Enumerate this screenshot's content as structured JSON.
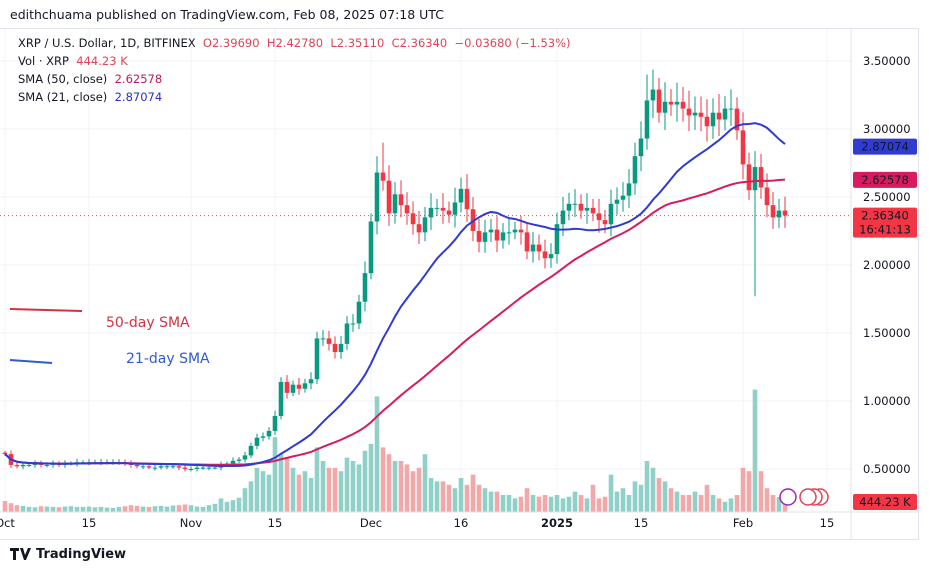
{
  "header": {
    "published": "edithchuama published on TradingView.com, Feb 08, 2025 07:18 UTC"
  },
  "legend": {
    "symbol": "XRP / U.S. Dollar, 1D, BITFINEX",
    "open": "O2.39690",
    "high": "H2.42780",
    "low": "L2.35110",
    "close": "C2.36340",
    "change": "−0.03680 (−1.53%)",
    "vol_label": "Vol · XRP",
    "vol_value": "444.23 K",
    "sma50_label": "SMA (50, close)",
    "sma50_value": "2.62578",
    "sma21_label": "SMA (21, close)",
    "sma21_value": "2.87074"
  },
  "annotations": {
    "sma50": "50-day SMA",
    "sma21": "21-day SMA"
  },
  "footer": {
    "brand": "TradingView"
  },
  "colors": {
    "up": "#089981",
    "down": "#f23645",
    "sma50": "#d81b60",
    "sma21": "#2f3bd1",
    "vol_up": "#8fd0c8",
    "vol_down": "#f2a7a9"
  },
  "chart_data": {
    "type": "candlestick",
    "start_date": "2024-10-01",
    "interval": "1D",
    "closes": [
      0.61,
      0.53,
      0.52,
      0.53,
      0.53,
      0.54,
      0.53,
      0.53,
      0.54,
      0.53,
      0.54,
      0.54,
      0.55,
      0.55,
      0.55,
      0.55,
      0.55,
      0.55,
      0.55,
      0.55,
      0.54,
      0.53,
      0.52,
      0.52,
      0.51,
      0.51,
      0.52,
      0.52,
      0.52,
      0.51,
      0.5,
      0.5,
      0.51,
      0.51,
      0.51,
      0.51,
      0.53,
      0.54,
      0.56,
      0.57,
      0.6,
      0.67,
      0.73,
      0.74,
      0.78,
      0.89,
      1.14,
      1.06,
      1.12,
      1.09,
      1.13,
      1.16,
      1.46,
      1.46,
      1.42,
      1.36,
      1.42,
      1.57,
      1.57,
      1.73,
      1.94,
      2.32,
      2.68,
      2.62,
      2.38,
      2.52,
      2.44,
      2.38,
      2.3,
      2.24,
      2.35,
      2.42,
      2.42,
      2.4,
      2.37,
      2.46,
      2.56,
      2.41,
      2.25,
      2.17,
      2.24,
      2.26,
      2.18,
      2.24,
      2.24,
      2.26,
      2.24,
      2.1,
      2.15,
      2.1,
      2.05,
      2.08,
      2.3,
      2.4,
      2.45,
      2.45,
      2.4,
      2.42,
      2.38,
      2.33,
      2.3,
      2.45,
      2.48,
      2.51,
      2.6,
      2.8,
      2.93,
      3.21,
      3.29,
      3.12,
      3.2,
      3.18,
      3.2,
      3.15,
      3.1,
      3.12,
      3.09,
      3.02,
      3.12,
      3.07,
      3.15,
      3.15,
      2.99,
      2.74,
      2.55,
      2.72,
      2.57,
      2.44,
      2.35,
      2.4,
      2.3634
    ],
    "first_open": 0.62,
    "wick_extremes": [
      {
        "date": "2024-12-03",
        "high": 2.9
      },
      {
        "date": "2025-01-16",
        "high": 3.4
      },
      {
        "date": "2025-02-03",
        "low": 1.77
      }
    ],
    "volume_unit": "K XRP",
    "volumes": [
      320,
      260,
      200,
      180,
      150,
      140,
      170,
      160,
      150,
      140,
      160,
      170,
      150,
      150,
      160,
      140,
      150,
      130,
      120,
      150,
      170,
      200,
      180,
      160,
      150,
      170,
      180,
      160,
      190,
      200,
      220,
      200,
      160,
      150,
      200,
      240,
      400,
      300,
      350,
      420,
      700,
      900,
      1300,
      1200,
      1100,
      2200,
      1700,
      1600,
      1300,
      1100,
      1200,
      1000,
      1900,
      1500,
      1300,
      1300,
      1200,
      1600,
      1500,
      1400,
      1800,
      2000,
      3400,
      1900,
      1700,
      1500,
      1500,
      1400,
      1200,
      1300,
      1700,
      1000,
      900,
      900,
      800,
      700,
      1000,
      800,
      1100,
      800,
      700,
      600,
      600,
      500,
      500,
      400,
      450,
      700,
      500,
      450,
      500,
      450,
      500,
      400,
      450,
      600,
      500,
      400,
      800,
      400,
      450,
      1100,
      600,
      700,
      500,
      900,
      800,
      1500,
      1300,
      1000,
      900,
      700,
      600,
      500,
      500,
      600,
      500,
      800,
      500,
      400,
      300,
      400,
      500,
      1300,
      1200,
      3600,
      1200,
      700,
      500,
      440,
      444.23
    ],
    "sma_periods": [
      50,
      21
    ],
    "y_ticks": [
      "3.50000",
      "3.00000",
      "2.50000",
      "2.00000",
      "1.50000",
      "1.00000",
      "0.50000"
    ],
    "y_tick_values": [
      3.5,
      3.0,
      2.5,
      2.0,
      1.5,
      1.0,
      0.5
    ],
    "x_ticks": [
      {
        "date": "2024-10-01",
        "label": "Oct"
      },
      {
        "date": "2024-10-15",
        "label": "15"
      },
      {
        "date": "2024-11-01",
        "label": "Nov"
      },
      {
        "date": "2024-11-15",
        "label": "15"
      },
      {
        "date": "2024-12-01",
        "label": "Dec"
      },
      {
        "date": "2024-12-16",
        "label": "16"
      },
      {
        "date": "2025-01-01",
        "label": "2025"
      },
      {
        "date": "2025-01-15",
        "label": "15"
      },
      {
        "date": "2025-02-01",
        "label": "Feb"
      },
      {
        "date": "2025-02-15",
        "label": "15"
      }
    ],
    "price_labels": {
      "sma21": "2.87074",
      "sma50": "2.62578",
      "last": "2.36340",
      "countdown": "16:41:13",
      "volume": "444.23 K"
    },
    "grid": true
  }
}
